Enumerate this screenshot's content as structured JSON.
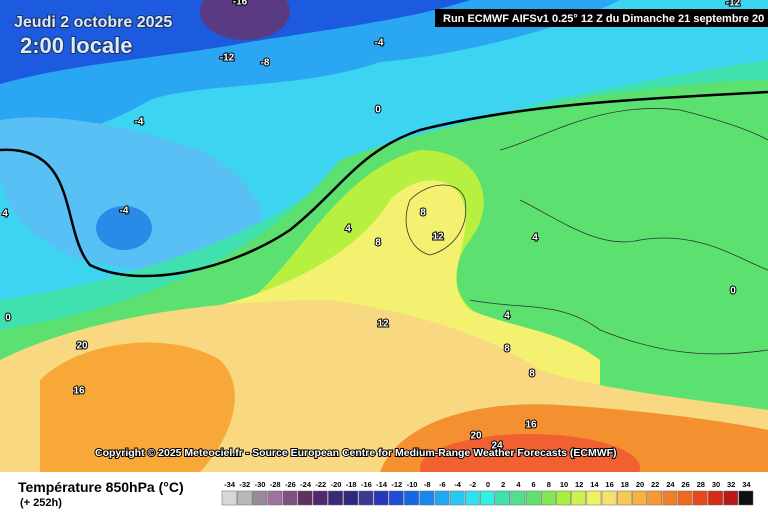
{
  "header": {
    "date": "Jeudi 2 octobre 2025",
    "time": "2:00 locale",
    "run": "Run ECMWF AIFSv1 0.25° 12 Z du Dimanche 21 septembre 20"
  },
  "copyright": "Copyright © 2025 Meteociel.fr - Source European Centre for Medium-Range Weather Forecasts (ECMWF)",
  "legend": {
    "title": "Température 850hPa (°C)",
    "lead": "(+ 252h)",
    "ticks": [
      -34,
      -32,
      -30,
      -28,
      -26,
      -24,
      -22,
      -20,
      -18,
      -16,
      -14,
      -12,
      -10,
      -8,
      -6,
      -4,
      -2,
      0,
      2,
      4,
      6,
      8,
      10,
      12,
      14,
      16,
      18,
      20,
      22,
      24,
      26,
      28,
      30,
      32,
      34
    ],
    "colors": [
      "#d8d8d8",
      "#b8b8b8",
      "#988898",
      "#a070a0",
      "#805080",
      "#603060",
      "#502870",
      "#3c2878",
      "#302880",
      "#3a3a96",
      "#2838b8",
      "#1c4cd8",
      "#1468e8",
      "#1888f0",
      "#20a8f0",
      "#28c8f0",
      "#30e0f0",
      "#30f0e0",
      "#40e0b0",
      "#50e090",
      "#60e070",
      "#80e850",
      "#a8f040",
      "#d0f050",
      "#f0f060",
      "#f8e070",
      "#f8c850",
      "#f8b040",
      "#f89830",
      "#f08028",
      "#f06820",
      "#e84818",
      "#d82818",
      "#b81818",
      "#101010"
    ]
  },
  "contour_labels": [
    -16,
    -12,
    -8,
    -4,
    -12,
    -4,
    -4,
    0,
    4,
    4,
    8,
    8,
    12,
    4,
    0,
    0,
    4,
    12,
    8,
    8,
    20,
    16,
    16,
    20,
    24
  ]
}
